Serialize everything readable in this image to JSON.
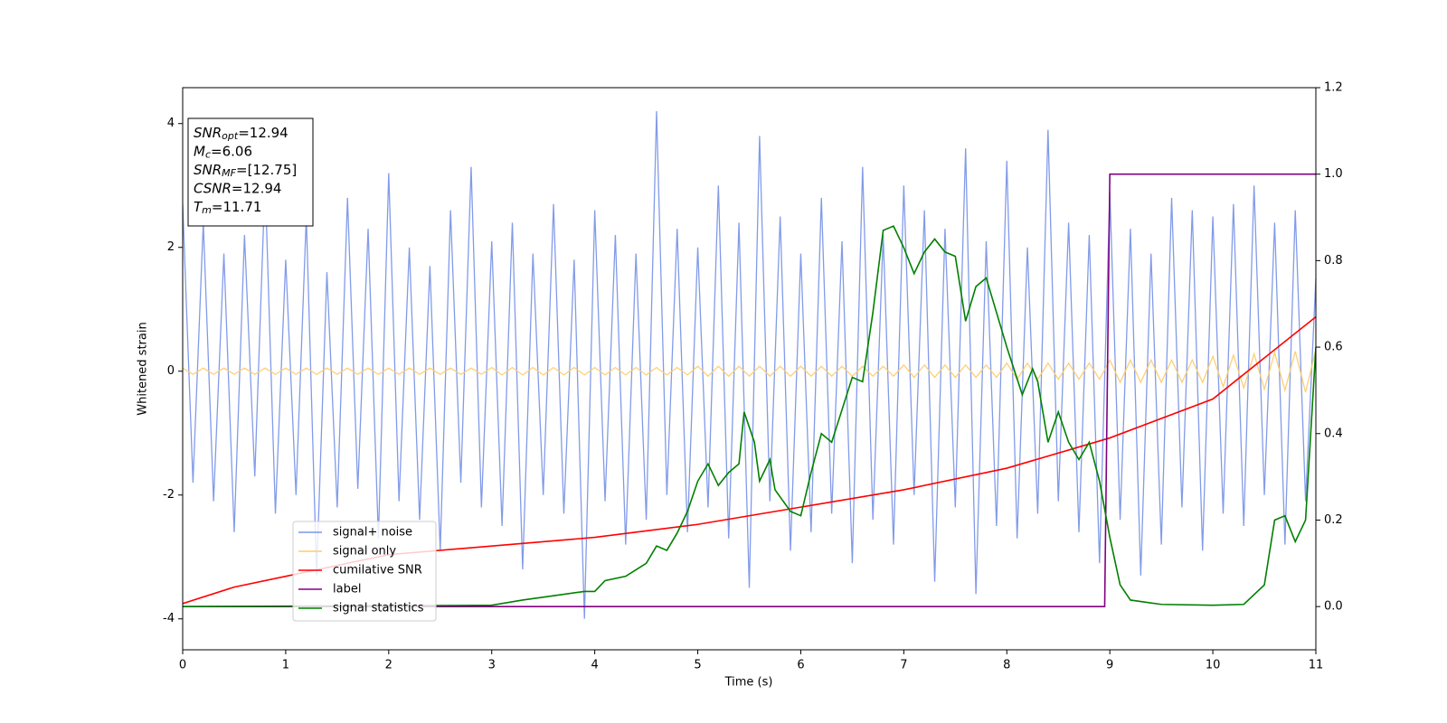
{
  "chart_data": {
    "type": "line",
    "xlabel": "Time (s)",
    "ylabel": "Whitened strain",
    "xlim": [
      0,
      11
    ],
    "ylim": [
      -4.5,
      4.58
    ],
    "y2lim": [
      -0.1,
      1.2
    ],
    "xticks": [
      0,
      1,
      2,
      3,
      4,
      5,
      6,
      7,
      8,
      9,
      10,
      11
    ],
    "yticks": [
      -4,
      -2,
      0,
      2,
      4
    ],
    "y2ticks": [
      {
        "value": 0,
        "label": "0.0"
      },
      {
        "value": 0.2,
        "label": "0.2"
      },
      {
        "value": 0.4,
        "label": "0.4"
      },
      {
        "value": 0.6,
        "label": "0.6"
      },
      {
        "value": 0.8,
        "label": "0.8"
      },
      {
        "value": 1.0,
        "label": "1.0"
      },
      {
        "value": 1.2,
        "label": "1.2"
      }
    ],
    "x": [
      0,
      0.1,
      0.2,
      0.3,
      0.4,
      0.5,
      0.6,
      0.7,
      0.8,
      0.9,
      1,
      1.1,
      1.2,
      1.3,
      1.4,
      1.5,
      1.6,
      1.7,
      1.8,
      1.9,
      2,
      2.1,
      2.2,
      2.3,
      2.4,
      2.5,
      2.6,
      2.7,
      2.8,
      2.9,
      3,
      3.1,
      3.2,
      3.3,
      3.4,
      3.5,
      3.6,
      3.7,
      3.8,
      3.9,
      4,
      4.1,
      4.2,
      4.3,
      4.4,
      4.5,
      4.6,
      4.7,
      4.8,
      4.9,
      5,
      5.1,
      5.2,
      5.3,
      5.4,
      5.5,
      5.6,
      5.7,
      5.8,
      5.9,
      6,
      6.1,
      6.2,
      6.3,
      6.4,
      6.5,
      6.6,
      6.7,
      6.8,
      6.9,
      7,
      7.1,
      7.2,
      7.3,
      7.4,
      7.5,
      7.6,
      7.7,
      7.8,
      7.9,
      8,
      8.1,
      8.2,
      8.3,
      8.4,
      8.5,
      8.6,
      8.7,
      8.8,
      8.9,
      9,
      9.1,
      9.2,
      9.3,
      9.4,
      9.5,
      9.6,
      9.7,
      9.8,
      9.9,
      10,
      10.1,
      10.2,
      10.3,
      10.4,
      10.5,
      10.6,
      10.7,
      10.8,
      10.9,
      11
    ],
    "series": [
      {
        "name": "signal+ noise",
        "color": "#7b96e8",
        "values": [
          2.7,
          -1.8,
          2.4,
          -2.1,
          1.9,
          -2.6,
          2.2,
          -1.7,
          3.1,
          -2.3,
          1.8,
          -2.0,
          2.5,
          -3.3,
          1.6,
          -2.2,
          2.8,
          -1.9,
          2.3,
          -2.7,
          3.2,
          -2.1,
          2.0,
          -2.4,
          1.7,
          -2.9,
          2.6,
          -1.8,
          3.3,
          -2.2,
          2.1,
          -2.5,
          2.4,
          -3.2,
          1.9,
          -2.0,
          2.7,
          -2.3,
          1.8,
          -4.0,
          2.6,
          -2.1,
          2.2,
          -2.8,
          1.9,
          -2.4,
          4.2,
          -2.0,
          2.3,
          -2.6,
          2.0,
          -2.2,
          3.0,
          -2.7,
          2.4,
          -3.5,
          3.8,
          -2.1,
          2.5,
          -2.9,
          1.9,
          -2.6,
          2.8,
          -2.3,
          2.1,
          -3.1,
          3.3,
          -2.4,
          2.2,
          -2.8,
          3.0,
          -2.0,
          2.6,
          -3.4,
          2.3,
          -2.2,
          3.6,
          -3.6,
          2.1,
          -2.5,
          3.4,
          -2.7,
          2.0,
          -2.3,
          3.9,
          -2.1,
          2.4,
          -2.6,
          2.2,
          -3.1,
          2.9,
          -2.4,
          2.3,
          -3.3,
          1.9,
          -2.8,
          2.8,
          -2.2,
          2.6,
          -2.9,
          2.5,
          -2.3,
          2.7,
          -2.5,
          3.0,
          -2.0,
          2.4,
          -2.8,
          2.6,
          -2.1,
          1.5
        ]
      },
      {
        "name": "signal only",
        "color": "#ffcc70",
        "values": [
          0.05,
          -0.05,
          0.05,
          -0.05,
          0.05,
          -0.05,
          0.05,
          -0.05,
          0.05,
          -0.05,
          0.05,
          -0.05,
          0.05,
          -0.05,
          0.05,
          -0.05,
          0.05,
          -0.05,
          0.05,
          -0.05,
          0.05,
          -0.05,
          0.05,
          -0.05,
          0.05,
          -0.05,
          0.05,
          -0.05,
          0.05,
          -0.05,
          0.06,
          -0.06,
          0.06,
          -0.06,
          0.06,
          -0.06,
          0.06,
          -0.06,
          0.06,
          -0.06,
          0.06,
          -0.06,
          0.06,
          -0.06,
          0.06,
          -0.06,
          0.06,
          -0.06,
          0.06,
          -0.06,
          0.08,
          -0.08,
          0.08,
          -0.08,
          0.08,
          -0.08,
          0.08,
          -0.08,
          0.08,
          -0.08,
          0.08,
          -0.08,
          0.08,
          -0.08,
          0.08,
          -0.08,
          0.08,
          -0.08,
          0.08,
          -0.08,
          0.1,
          -0.1,
          0.1,
          -0.1,
          0.1,
          -0.1,
          0.1,
          -0.1,
          0.1,
          -0.1,
          0.13,
          -0.13,
          0.13,
          -0.13,
          0.13,
          -0.13,
          0.13,
          -0.13,
          0.13,
          -0.13,
          0.18,
          -0.18,
          0.18,
          -0.18,
          0.18,
          -0.18,
          0.18,
          -0.18,
          0.18,
          -0.18,
          0.24,
          -0.25,
          0.26,
          -0.27,
          0.28,
          -0.29,
          0.3,
          -0.31,
          0.32,
          -0.34,
          0.35
        ]
      },
      {
        "name": "cumilative SNR",
        "color": "#ff0000",
        "axis": "y2",
        "x": [
          0,
          0.5,
          1,
          2,
          3,
          4,
          5,
          6,
          7,
          8,
          9,
          10,
          11
        ],
        "values": [
          0.007,
          0.045,
          0.07,
          0.12,
          0.14,
          0.16,
          0.19,
          0.23,
          0.27,
          0.32,
          0.39,
          0.48,
          0.67
        ]
      },
      {
        "name": "label",
        "color": "#800080",
        "axis": "y2",
        "x": [
          0,
          8.95,
          9.0,
          11
        ],
        "values": [
          0,
          0,
          1,
          1
        ]
      },
      {
        "name": "signal statistics",
        "color": "#008000",
        "axis": "y2",
        "x": [
          0,
          3,
          3.3,
          3.6,
          3.9,
          4,
          4.1,
          4.3,
          4.5,
          4.6,
          4.7,
          4.8,
          4.9,
          5,
          5.1,
          5.2,
          5.3,
          5.4,
          5.45,
          5.55,
          5.6,
          5.7,
          5.75,
          5.9,
          6,
          6.1,
          6.2,
          6.3,
          6.5,
          6.6,
          6.7,
          6.8,
          6.9,
          7,
          7.1,
          7.2,
          7.3,
          7.4,
          7.5,
          7.6,
          7.7,
          7.8,
          7.9,
          8,
          8.15,
          8.25,
          8.3,
          8.4,
          8.5,
          8.6,
          8.7,
          8.8,
          8.9,
          9,
          9.1,
          9.2,
          9.5,
          10,
          10.3,
          10.5,
          10.6,
          10.7,
          10.8,
          10.9,
          11
        ],
        "values": [
          0,
          0.003,
          0.015,
          0.025,
          0.035,
          0.035,
          0.06,
          0.07,
          0.1,
          0.14,
          0.13,
          0.17,
          0.22,
          0.29,
          0.33,
          0.28,
          0.31,
          0.33,
          0.45,
          0.38,
          0.29,
          0.34,
          0.27,
          0.22,
          0.21,
          0.31,
          0.4,
          0.38,
          0.53,
          0.52,
          0.68,
          0.87,
          0.88,
          0.83,
          0.77,
          0.82,
          0.85,
          0.82,
          0.81,
          0.66,
          0.74,
          0.76,
          0.68,
          0.6,
          0.49,
          0.55,
          0.52,
          0.38,
          0.45,
          0.38,
          0.34,
          0.38,
          0.29,
          0.16,
          0.05,
          0.015,
          0.005,
          0.003,
          0.005,
          0.05,
          0.2,
          0.21,
          0.15,
          0.2,
          0.6
        ]
      }
    ],
    "info": [
      {
        "base": "SNR",
        "sub": "opt",
        "text": "=12.94"
      },
      {
        "base": "M",
        "sub": "c",
        "text": "=6.06"
      },
      {
        "base": "SNR",
        "sub": "MF",
        "text": "=[12.75]"
      },
      {
        "base": "CSNR",
        "text": "=12.94"
      },
      {
        "base": "T",
        "sub": "m",
        "text": "=11.71"
      }
    ]
  }
}
